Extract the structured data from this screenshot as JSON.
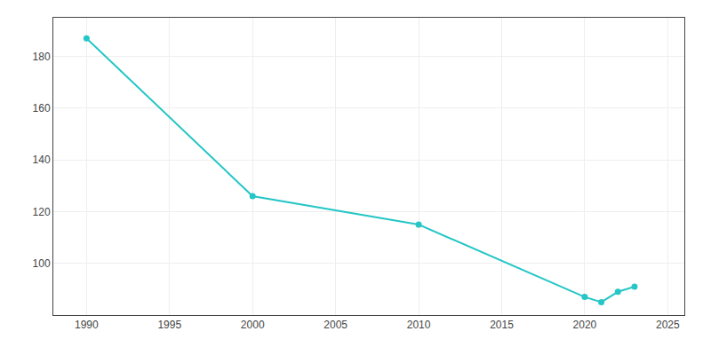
{
  "chart_data": {
    "type": "line",
    "x": [
      1990,
      2000,
      2010,
      2020,
      2021,
      2022,
      2023
    ],
    "values": [
      187,
      126,
      115,
      87,
      85,
      89,
      91
    ],
    "color": "#26c6c6",
    "marker": "circle",
    "xlim": [
      1988,
      2026
    ],
    "ylim": [
      80,
      195
    ],
    "xticks": [
      1990,
      1995,
      2000,
      2005,
      2010,
      2015,
      2020,
      2025
    ],
    "yticks": [
      100,
      120,
      140,
      160,
      180
    ],
    "grid": true
  }
}
